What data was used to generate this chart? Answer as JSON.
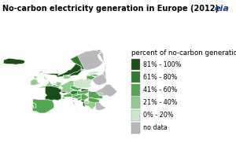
{
  "title": "No-carbon electricity generation in Europe (2012)",
  "title_fontsize": 7.0,
  "legend_title": "percent of no-carbon generation",
  "legend_title_fontsize": 6.2,
  "legend_fontsize": 5.8,
  "background_color": "#ffffff",
  "map_bg_color": "#ffffff",
  "legend_categories": [
    {
      "label": "81% - 100%",
      "color": "#1b4d18"
    },
    {
      "label": "61% - 80%",
      "color": "#2e7d2c"
    },
    {
      "label": "41% - 60%",
      "color": "#52a84e"
    },
    {
      "label": "21% - 40%",
      "color": "#8fcc8a"
    },
    {
      "label": "0% - 20%",
      "color": "#cce8cc"
    },
    {
      "label": "no data",
      "color": "#b8b8b8"
    }
  ],
  "category_colors": {
    "81-100": "#1b4d18",
    "61-80": "#2e7d2c",
    "41-60": "#52a84e",
    "21-40": "#8fcc8a",
    "0-20": "#cce8cc",
    "no-data": "#b8b8b8"
  },
  "figsize": [
    3.0,
    1.96
  ],
  "dpi": 100
}
